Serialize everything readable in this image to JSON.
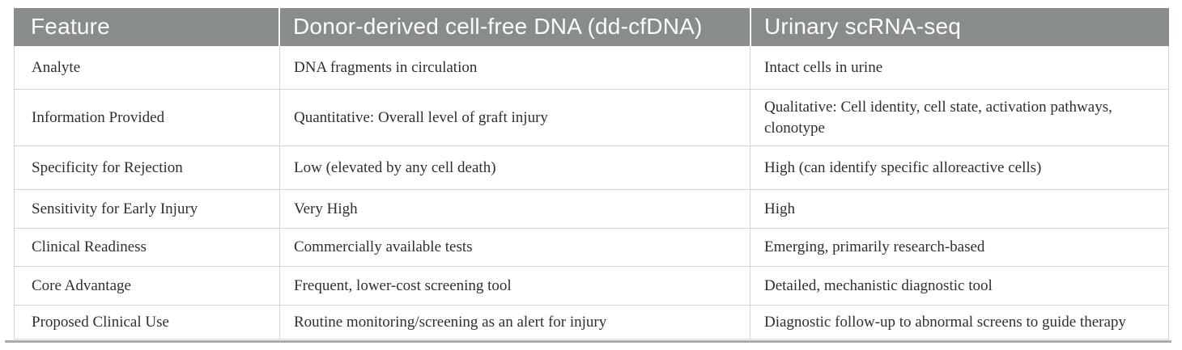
{
  "table": {
    "columns": [
      {
        "label": "Feature"
      },
      {
        "label": "Donor-derived cell-free DNA (dd-cfDNA)"
      },
      {
        "label": "Urinary scRNA-seq"
      }
    ],
    "rows": [
      {
        "feature": "Analyte",
        "ddcfdna": "DNA fragments in circulation",
        "scrna": "Intact cells in urine"
      },
      {
        "feature": "Information Provided",
        "ddcfdna": "Quantitative: Overall level of graft injury",
        "scrna": "Qualitative: Cell identity, cell state, activation pathways, clonotype"
      },
      {
        "feature": "Specificity for Rejection",
        "ddcfdna": "Low (elevated by any cell death)",
        "scrna": "High (can identify specific alloreactive cells)"
      },
      {
        "feature": "Sensitivity for Early Injury",
        "ddcfdna": "Very High",
        "scrna": "High"
      },
      {
        "feature": "Clinical Readiness",
        "ddcfdna": "Commercially available tests",
        "scrna": "Emerging, primarily research-based"
      },
      {
        "feature": "Core Advantage",
        "ddcfdna": "Frequent, lower-cost screening tool",
        "scrna": "Detailed, mechanistic diagnostic tool"
      },
      {
        "feature": "Proposed Clinical Use",
        "ddcfdna": "Routine monitoring/screening as an alert for injury",
        "scrna": "Diagnostic follow-up to abnormal screens to guide therapy"
      }
    ],
    "colors": {
      "header_bg": "#898c8d",
      "header_text": "#fdfdfd",
      "body_text": "#2f2f2f",
      "grid_line": "#d4d4d5",
      "bottom_bar": "#aaabac"
    }
  }
}
